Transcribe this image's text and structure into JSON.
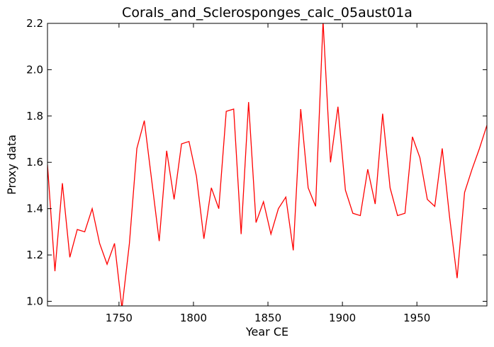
{
  "chart_data": {
    "type": "line",
    "title": "Corals_and_Sclerosponges_calc_05aust01a",
    "xlabel": "Year CE",
    "ylabel": "Proxy data",
    "xlim": [
      1702,
      1997
    ],
    "ylim": [
      0.98,
      2.2
    ],
    "xticks": [
      1750,
      1800,
      1850,
      1900,
      1950
    ],
    "xtick_labels": [
      "1750",
      "1800",
      "1850",
      "1900",
      "1950"
    ],
    "yticks": [
      1.0,
      1.2,
      1.4,
      1.6,
      1.8,
      2.0,
      2.2
    ],
    "ytick_labels": [
      "1.0",
      "1.2",
      "1.4",
      "1.6",
      "1.8",
      "2.0",
      "2.2"
    ],
    "grid": false,
    "series": [
      {
        "color": "#ff0000",
        "x": [
          1702,
          1707,
          1712,
          1717,
          1722,
          1727,
          1732,
          1737,
          1742,
          1747,
          1752,
          1757,
          1762,
          1767,
          1772,
          1777,
          1782,
          1787,
          1792,
          1797,
          1802,
          1807,
          1812,
          1817,
          1822,
          1827,
          1832,
          1837,
          1842,
          1847,
          1852,
          1857,
          1862,
          1867,
          1872,
          1877,
          1882,
          1887,
          1892,
          1897,
          1902,
          1907,
          1912,
          1917,
          1922,
          1927,
          1932,
          1937,
          1942,
          1947,
          1952,
          1957,
          1962,
          1967,
          1972,
          1977,
          1982,
          1987,
          1992,
          1997
        ],
        "y": [
          1.59,
          1.13,
          1.51,
          1.19,
          1.31,
          1.3,
          1.4,
          1.25,
          1.16,
          1.25,
          0.97,
          1.25,
          1.66,
          1.78,
          1.52,
          1.26,
          1.65,
          1.44,
          1.68,
          1.69,
          1.54,
          1.27,
          1.49,
          1.4,
          1.82,
          1.83,
          1.29,
          1.86,
          1.34,
          1.43,
          1.29,
          1.4,
          1.45,
          1.22,
          1.83,
          1.49,
          1.41,
          2.21,
          1.6,
          1.84,
          1.48,
          1.38,
          1.37,
          1.57,
          1.42,
          1.81,
          1.49,
          1.37,
          1.38,
          1.71,
          1.62,
          1.44,
          1.41,
          1.66,
          1.36,
          1.1,
          1.47,
          1.57,
          1.66,
          1.76
        ]
      }
    ]
  }
}
